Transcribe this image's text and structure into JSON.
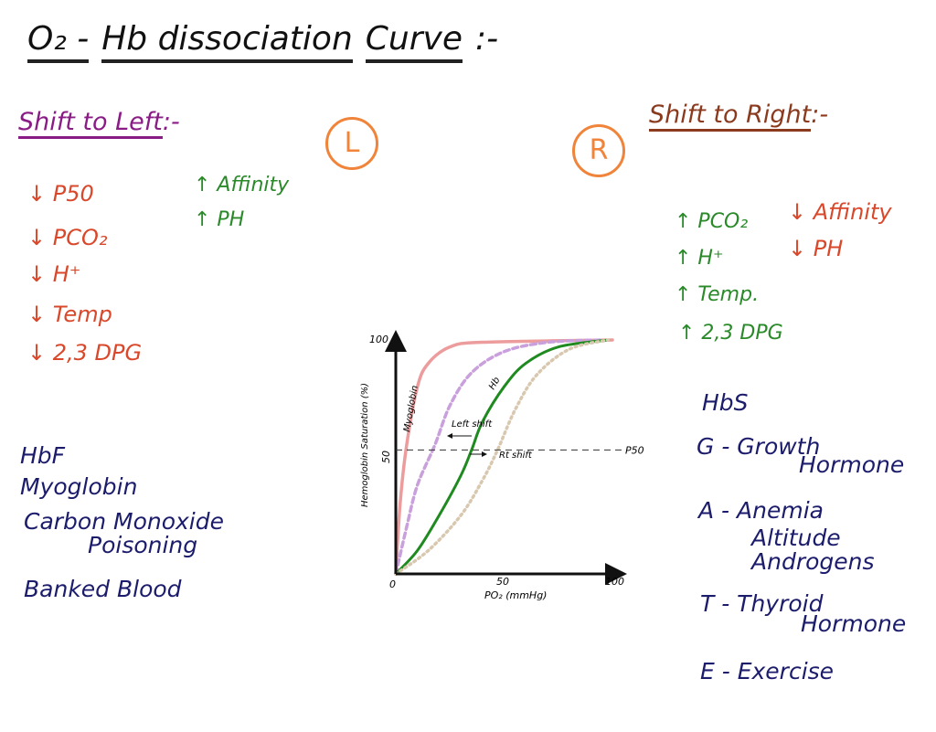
{
  "title": {
    "parts": [
      "O₂ -",
      "Hb dissociation",
      "Curve"
    ],
    "suffix": ":-"
  },
  "left": {
    "heading": "Shift to Left",
    "heading_suffix": ":-",
    "badge": "L",
    "decreases": [
      "↓ P50",
      "↓ PCO₂",
      "↓ H⁺",
      "↓ Temp",
      "↓ 2,3 DPG"
    ],
    "increases": [
      "↑ Affinity",
      "↑ PH"
    ],
    "causes": [
      "HbF",
      "Myoglobin",
      "Carbon Monoxide",
      "Poisoning",
      "Banked Blood"
    ]
  },
  "right": {
    "heading": "Shift to Right",
    "heading_suffix": ":-",
    "badge": "R",
    "increases": [
      "↑ PCO₂",
      "↑ H⁺",
      "↑ Temp.",
      "↑ 2,3 DPG"
    ],
    "decreases": [
      "↓ Affinity",
      "↓ PH"
    ],
    "causes": [
      "HbS",
      "G - Growth",
      "Hormone",
      "A - Anemia",
      "Altitude",
      "Androgens",
      "T - Thyroid",
      "Hormone",
      "E - Exercise"
    ]
  },
  "colors": {
    "myoglobin": "#ec9c9c",
    "left_shift": "#c9a0dc",
    "hb": "#1f8a1f",
    "right_shift": "#d9c8b0",
    "p50_line": "#333333"
  },
  "chart_data": {
    "type": "line",
    "xlabel": "PO₂ (mmHg)",
    "ylabel": "Hemoglobin Saturation (%)",
    "xlim": [
      0,
      100
    ],
    "ylim": [
      0,
      100
    ],
    "x_ticks": [
      "0",
      "50",
      "100"
    ],
    "y_ticks": [
      "50",
      "100"
    ],
    "grid": false,
    "p50_label": "P50",
    "p50_level": 53,
    "annotations": [
      "Left shift",
      "Rt shift"
    ],
    "series": [
      {
        "name": "Myoglobin",
        "style": "solid",
        "points": [
          [
            0,
            0
          ],
          [
            2,
            30
          ],
          [
            5,
            55
          ],
          [
            10,
            80
          ],
          [
            15,
            90
          ],
          [
            25,
            97
          ],
          [
            40,
            99
          ],
          [
            100,
            100
          ]
        ]
      },
      {
        "name": "",
        "style": "dashed",
        "points": [
          [
            0,
            0
          ],
          [
            5,
            20
          ],
          [
            10,
            38
          ],
          [
            18,
            55
          ],
          [
            25,
            72
          ],
          [
            35,
            86
          ],
          [
            50,
            95
          ],
          [
            70,
            99
          ],
          [
            95,
            100
          ]
        ]
      },
      {
        "name": "Hb",
        "style": "solid",
        "points": [
          [
            0,
            0
          ],
          [
            10,
            10
          ],
          [
            20,
            25
          ],
          [
            30,
            42
          ],
          [
            35,
            53
          ],
          [
            40,
            65
          ],
          [
            50,
            80
          ],
          [
            60,
            90
          ],
          [
            75,
            97
          ],
          [
            98,
            100
          ]
        ]
      },
      {
        "name": "",
        "style": "dotted",
        "points": [
          [
            0,
            0
          ],
          [
            15,
            10
          ],
          [
            30,
            25
          ],
          [
            40,
            40
          ],
          [
            47,
            53
          ],
          [
            55,
            70
          ],
          [
            65,
            85
          ],
          [
            80,
            96
          ],
          [
            98,
            100
          ]
        ]
      }
    ]
  }
}
